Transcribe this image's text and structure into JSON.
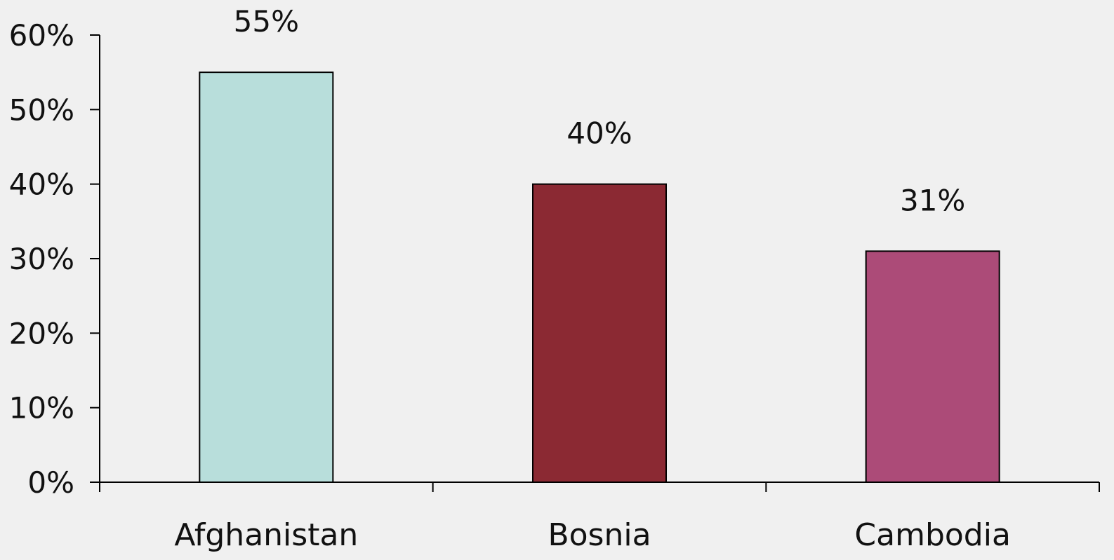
{
  "chart_data": {
    "type": "bar",
    "title": "",
    "xlabel": "",
    "ylabel": "",
    "categories": [
      "Afghanistan",
      "Bosnia",
      "Cambodia"
    ],
    "values": [
      55,
      40,
      31
    ],
    "value_labels": [
      "55%",
      "40%",
      "31%"
    ],
    "colors": [
      "#b8dedb",
      "#8b2933",
      "#ac4b78"
    ],
    "ylim": [
      0,
      60
    ],
    "yticks": [
      0,
      10,
      20,
      30,
      40,
      50,
      60
    ],
    "ytick_labels": [
      "0%",
      "10%",
      "20%",
      "30%",
      "40%",
      "50%",
      "60%"
    ],
    "grid": false,
    "legend": "none"
  }
}
